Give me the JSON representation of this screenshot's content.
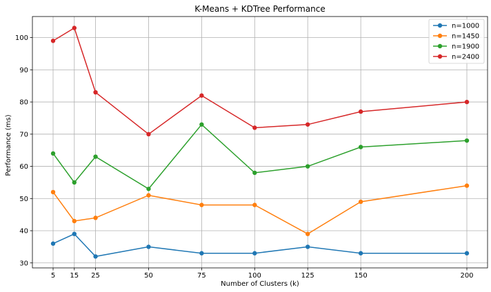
{
  "chart_data": {
    "type": "line",
    "title": "K-Means + KDTree Performance",
    "xlabel": "Number of Clusters (k)",
    "ylabel": "Performance (ms)",
    "x": [
      5,
      15,
      25,
      50,
      75,
      100,
      125,
      150,
      200
    ],
    "xticks": [
      5,
      15,
      25,
      50,
      75,
      100,
      125,
      150,
      200
    ],
    "yticks": [
      30,
      40,
      50,
      60,
      70,
      80,
      90,
      100
    ],
    "xlim": [
      -4.75,
      209.75
    ],
    "ylim": [
      28.45,
      106.55
    ],
    "grid": true,
    "legend_position": "top-right",
    "series": [
      {
        "name": "n=1000",
        "color": "#1f77b4",
        "values": [
          36,
          39,
          32,
          35,
          33,
          33,
          35,
          33,
          33
        ]
      },
      {
        "name": "n=1450",
        "color": "#ff7f0e",
        "values": [
          52,
          43,
          44,
          51,
          48,
          48,
          39,
          49,
          54
        ]
      },
      {
        "name": "n=1900",
        "color": "#2ca02c",
        "values": [
          64,
          55,
          63,
          53,
          73,
          58,
          60,
          66,
          68
        ]
      },
      {
        "name": "n=2400",
        "color": "#d62728",
        "values": [
          99,
          103,
          83,
          70,
          82,
          72,
          73,
          77,
          80
        ]
      }
    ]
  }
}
